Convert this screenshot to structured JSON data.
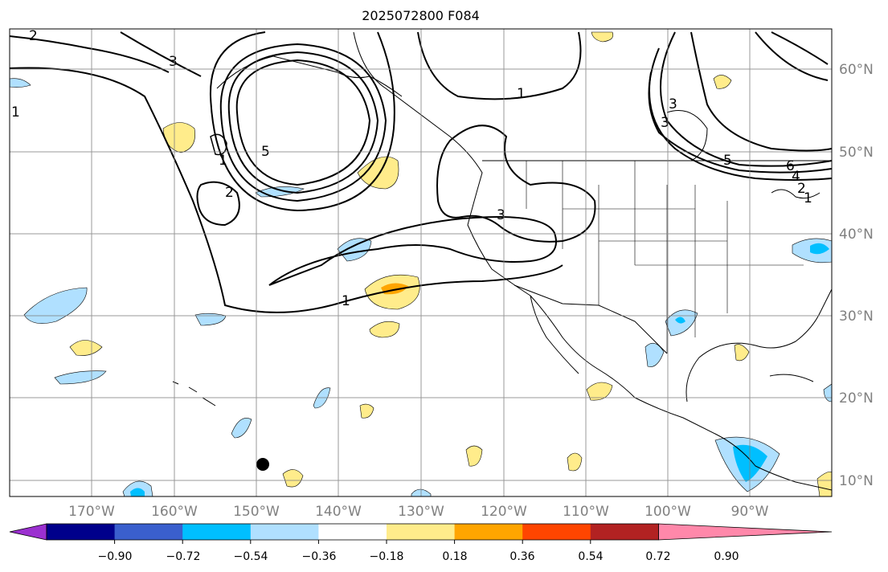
{
  "title": "2025072800 F084",
  "map": {
    "lon_labels": [
      "170°W",
      "160°W",
      "150°W",
      "140°W",
      "130°W",
      "120°W",
      "110°W",
      "100°W",
      "90°W"
    ],
    "lat_labels": [
      "60°N",
      "50°N",
      "40°N",
      "30°N",
      "20°N",
      "10°N"
    ],
    "contour_labels": [
      "2",
      "3",
      "3",
      "1",
      "1",
      "2",
      "5",
      "1",
      "3",
      "3",
      "5",
      "6",
      "4",
      "2",
      "1",
      "1"
    ]
  },
  "colorbar": {
    "tick_labels": [
      "−0.90",
      "−0.72",
      "−0.54",
      "−0.36",
      "−0.18",
      "0.18",
      "0.36",
      "0.54",
      "0.72",
      "0.90"
    ],
    "colors": [
      "#9b30d0",
      "#00008b",
      "#3a5fcd",
      "#00bfff",
      "#b0e0ff",
      "#ffffff",
      "#ffec8b",
      "#ffa500",
      "#ff4500",
      "#b22222",
      "#ff88aa"
    ]
  }
}
